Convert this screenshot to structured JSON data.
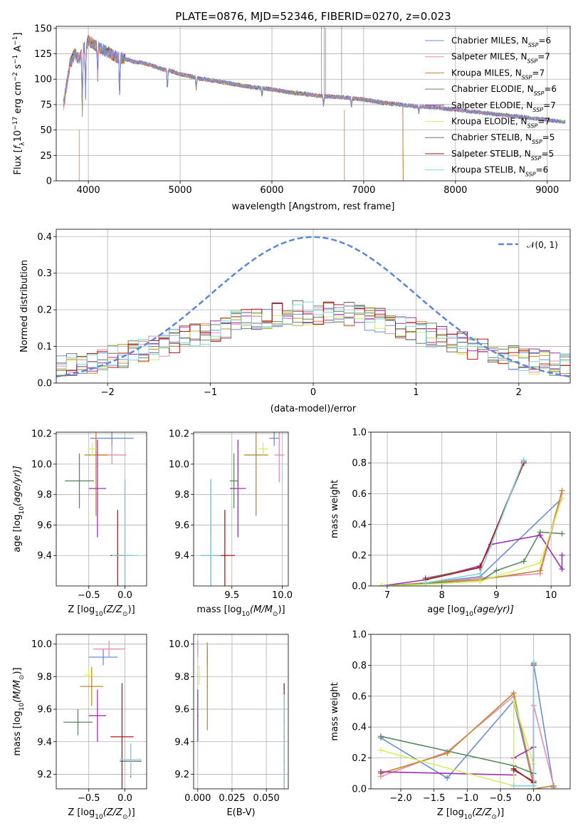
{
  "chart_data": [
    {
      "id": "spectrum",
      "type": "line",
      "title": "PLATE=0876, MJD=52346, FIBERID=0270, z=0.023",
      "xlabel": "wavelength [Angstrom, rest frame]",
      "ylabel": "Flux [f_λ 10^-17 erg cm^-2 s^-1 A^-1]",
      "ylabel_parts": {
        "a": "Flux [",
        "b": "f",
        "c": "λ",
        "d": "10",
        "e": "−17",
        "f": " erg cm",
        "g": "−2",
        "h": " s",
        "i": "−1",
        "j": " A",
        "k": "−1",
        "l": "]"
      },
      "xlim": [
        3650,
        9250
      ],
      "ylim": [
        0,
        152
      ],
      "xticks": [
        4000,
        5000,
        6000,
        7000,
        8000,
        9000
      ],
      "yticks": [
        0,
        25,
        50,
        75,
        100,
        125,
        150
      ],
      "legend_position": "upper right",
      "series": [
        {
          "name": "Chabrier MILES",
          "nssp": "6",
          "color": "#6a8fd6"
        },
        {
          "name": "Salpeter MILES",
          "nssp": "7",
          "color": "#e88cb4"
        },
        {
          "name": "Kroupa MILES",
          "nssp": "7",
          "color": "#c08a2a"
        },
        {
          "name": "Chabrier ELODIE",
          "nssp": "6",
          "color": "#5a8a5a"
        },
        {
          "name": "Salpeter ELODIE",
          "nssp": "7",
          "color": "#9b30b0"
        },
        {
          "name": "Kroupa ELODIE",
          "nssp": "7",
          "color": "#d8ee60"
        },
        {
          "name": "Chabrier STELIB",
          "nssp": "5",
          "color": "#707070"
        },
        {
          "name": "Salpeter STELIB",
          "nssp": "5",
          "color": "#b01818"
        },
        {
          "name": "Kroupa STELIB",
          "nssp": "6",
          "color": "#7fd4e0"
        }
      ],
      "continuum": {
        "x": [
          3730,
          3800,
          3850,
          3900,
          3950,
          4000,
          4100,
          4200,
          4300,
          4400,
          4500,
          4600,
          4700,
          4800,
          4900,
          5000,
          5200,
          5400,
          5600,
          5800,
          6000,
          6200,
          6400,
          6600,
          6800,
          7000,
          7200,
          7400,
          7600,
          7800,
          8000,
          8200,
          8400,
          8600,
          8800,
          9000,
          9200
        ],
        "y": [
          75,
          115,
          125,
          120,
          130,
          138,
          132,
          127,
          122,
          120,
          117,
          116,
          113,
          110,
          108,
          105,
          101,
          98,
          95,
          92,
          90,
          87,
          85,
          83,
          82,
          80,
          77,
          75,
          73,
          72,
          70,
          68,
          66,
          64,
          62,
          60,
          58
        ]
      }
    },
    {
      "id": "residuals",
      "type": "line",
      "xlabel": "(data-model)/error",
      "ylabel": "Normed distribution",
      "xlim": [
        -2.5,
        2.5
      ],
      "ylim": [
        0,
        0.42
      ],
      "xticks": [
        -2,
        -1,
        0,
        1,
        2
      ],
      "yticks": [
        0.0,
        0.1,
        0.2,
        0.3,
        0.4
      ],
      "legend_position": "upper right",
      "gaussian_label": "𝒩(0, 1)",
      "gaussian_color": "#5b88d6"
    },
    {
      "id": "age_vs_Z",
      "type": "scatter",
      "xlabel_parts": {
        "a": "Z [log",
        "b": "10",
        "c": "(Z/Z",
        "d": "⊙",
        "e": ")]"
      },
      "ylabel_parts": {
        "a": "age  [log",
        "b": "10",
        "c": "(age/yr)]"
      },
      "xlim": [
        -0.95,
        0.3
      ],
      "ylim": [
        9.2,
        10.21
      ],
      "xticks": [
        -0.5,
        0.0
      ],
      "yticks": [
        9.4,
        9.6,
        9.8,
        10.0,
        10.2
      ],
      "points": [
        {
          "s": 0,
          "x": -0.18,
          "y": 10.17,
          "ex": 0.3,
          "ey": 0.05
        },
        {
          "s": 1,
          "x": -0.18,
          "y": 10.06,
          "ex": 0.2,
          "ey": 0.06
        },
        {
          "s": 2,
          "x": -0.4,
          "y": 10.06,
          "ex": 0.16,
          "ey": 0.4
        },
        {
          "s": 3,
          "x": -0.63,
          "y": 9.89,
          "ex": 0.2,
          "ey": 0.18
        },
        {
          "s": 4,
          "x": -0.38,
          "y": 9.84,
          "ex": 0.12,
          "ey": 0.32
        },
        {
          "s": 5,
          "x": -0.45,
          "y": 10.1,
          "ex": 0.05,
          "ey": 0.04
        },
        {
          "s": 6,
          "x": 0.0,
          "y": 9.4,
          "ex": 0.12,
          "ey": 0.5
        },
        {
          "s": 7,
          "x": -0.1,
          "y": 9.4,
          "ex": 0.1,
          "ey": 0.3
        },
        {
          "s": 8,
          "x": 0.0,
          "y": 9.4,
          "ex": 0.18,
          "ey": 0.5
        }
      ]
    },
    {
      "id": "age_vs_mass",
      "type": "scatter",
      "xlabel_parts": {
        "a": "mass [log",
        "b": "10",
        "c": "(M/M",
        "d": "⊙",
        "e": ")]"
      },
      "xlim": [
        9.12,
        10.06
      ],
      "ylim": [
        9.2,
        10.21
      ],
      "xticks": [
        9.5,
        10.0
      ],
      "yticks": [
        9.4,
        9.6,
        9.8,
        10.0,
        10.2
      ],
      "points": [
        {
          "s": 0,
          "x": 9.92,
          "y": 10.17,
          "ex": 0.05,
          "ey": 0.05
        },
        {
          "s": 1,
          "x": 9.97,
          "y": 10.06,
          "ex": 0.05,
          "ey": 0.18
        },
        {
          "s": 2,
          "x": 9.74,
          "y": 10.06,
          "ex": 0.12,
          "ey": 0.4
        },
        {
          "s": 3,
          "x": 9.52,
          "y": 9.89,
          "ex": 0.04,
          "ey": 0.18
        },
        {
          "s": 4,
          "x": 9.56,
          "y": 9.84,
          "ex": 0.08,
          "ey": 0.32
        },
        {
          "s": 5,
          "x": 9.81,
          "y": 10.1,
          "ex": 0.05,
          "ey": 0.04
        },
        {
          "s": 6,
          "x": 9.29,
          "y": 9.4,
          "ex": 0.1,
          "ey": 0.5
        },
        {
          "s": 7,
          "x": 9.43,
          "y": 9.4,
          "ex": 0.1,
          "ey": 0.3
        },
        {
          "s": 8,
          "x": 9.29,
          "y": 9.4,
          "ex": 0.1,
          "ey": 0.5
        }
      ]
    },
    {
      "id": "mass_weight_vs_age",
      "type": "line",
      "xlabel_parts": {
        "a": "age  [log",
        "b": "10",
        "c": "(age/yr)]"
      },
      "ylabel": "mass weight",
      "xlim": [
        6.7,
        10.35
      ],
      "ylim": [
        0,
        1
      ],
      "xticks": [
        7,
        8,
        9,
        10
      ],
      "yticks": [
        0.0,
        0.2,
        0.4,
        0.6,
        0.8,
        1.0
      ],
      "series": [
        {
          "s": 0,
          "x": [
            7.7,
            8.7,
            10.2
          ],
          "y": [
            0.02,
            0.06,
            0.57
          ]
        },
        {
          "s": 1,
          "x": [
            7.7,
            8.7,
            9.8,
            10.2
          ],
          "y": [
            0.02,
            0.05,
            0.08,
            0.6
          ]
        },
        {
          "s": 2,
          "x": [
            6.9,
            7.7,
            8.7,
            9.8,
            10.2
          ],
          "y": [
            0.0,
            0.02,
            0.04,
            0.1,
            0.62
          ]
        },
        {
          "s": 3,
          "x": [
            6.9,
            8.0,
            8.7,
            9.0,
            9.5,
            9.8,
            10.2
          ],
          "y": [
            0.0,
            0.02,
            0.03,
            0.1,
            0.16,
            0.35,
            0.34
          ]
        },
        {
          "s": 4,
          "x": [
            6.9,
            7.7,
            8.7,
            8.9,
            9.8,
            10.2,
            10.2
          ],
          "y": [
            0.0,
            0.04,
            0.13,
            0.27,
            0.33,
            0.11,
            0.2
          ]
        },
        {
          "s": 5,
          "x": [
            6.9,
            7.7,
            8.7,
            9.8,
            10.2
          ],
          "y": [
            0.0,
            0.01,
            0.03,
            0.15,
            0.57
          ]
        },
        {
          "s": 6,
          "x": [
            7.7,
            8.7,
            9.5
          ],
          "y": [
            0.05,
            0.12,
            0.81
          ]
        },
        {
          "s": 7,
          "x": [
            7.7,
            8.7,
            9.5
          ],
          "y": [
            0.04,
            0.12,
            0.8
          ]
        },
        {
          "s": 8,
          "x": [
            7.7,
            8.7,
            9.5
          ],
          "y": [
            0.02,
            0.08,
            0.82
          ]
        }
      ]
    },
    {
      "id": "mass_vs_Z",
      "type": "scatter",
      "xlabel_parts": {
        "a": "Z [log",
        "b": "10",
        "c": "(Z/Z",
        "d": "⊙",
        "e": ")]"
      },
      "ylabel_parts": {
        "a": "mass [log",
        "b": "10",
        "c": "(M/M",
        "d": "⊙",
        "e": ")]"
      },
      "xlim": [
        -0.95,
        0.3
      ],
      "ylim": [
        9.11,
        10.06
      ],
      "xticks": [
        -0.5,
        0.0
      ],
      "yticks": [
        9.2,
        9.4,
        9.6,
        9.8,
        10.0
      ],
      "points": [
        {
          "s": 0,
          "x": -0.3,
          "y": 9.92,
          "ex": 0.2,
          "ey": 0.05
        },
        {
          "s": 1,
          "x": -0.22,
          "y": 9.97,
          "ex": 0.22,
          "ey": 0.05
        },
        {
          "s": 2,
          "x": -0.46,
          "y": 9.74,
          "ex": 0.16,
          "ey": 0.12
        },
        {
          "s": 3,
          "x": -0.65,
          "y": 9.52,
          "ex": 0.2,
          "ey": 0.08
        },
        {
          "s": 4,
          "x": -0.38,
          "y": 9.56,
          "ex": 0.12,
          "ey": 0.16
        },
        {
          "s": 5,
          "x": -0.5,
          "y": 9.81,
          "ex": 0.07,
          "ey": 0.04
        },
        {
          "s": 6,
          "x": 0.08,
          "y": 9.28,
          "ex": 0.15,
          "ey": 0.1
        },
        {
          "s": 7,
          "x": -0.04,
          "y": 9.43,
          "ex": 0.16,
          "ey": 0.33
        },
        {
          "s": 8,
          "x": 0.08,
          "y": 9.29,
          "ex": 0.15,
          "ey": 0.1
        }
      ]
    },
    {
      "id": "mass_vs_EBV",
      "type": "scatter",
      "xlabel": "E(B-V)",
      "xlim": [
        -0.003,
        0.066
      ],
      "ylim": [
        9.11,
        10.06
      ],
      "xticks": [
        0.0,
        0.025,
        0.05
      ],
      "xticklabels": [
        "0.000",
        "0.025",
        "0.050"
      ],
      "yticks": [
        9.2,
        9.4,
        9.6,
        9.8,
        10.0
      ],
      "points": [
        {
          "s": 0,
          "x": 0.007,
          "y": 9.92,
          "ex": 0.0,
          "ey": 0.05
        },
        {
          "s": 1,
          "x": 0.0,
          "y": 9.97,
          "ex": 0.0,
          "ey": 0.05
        },
        {
          "s": 2,
          "x": 0.007,
          "y": 9.74,
          "ex": 0.0,
          "ey": 0.27
        },
        {
          "s": 3,
          "x": 0.063,
          "y": 9.52,
          "ex": 0.0,
          "ey": 0.08
        },
        {
          "s": 4,
          "x": 0.0,
          "y": 9.56,
          "ex": 0.0,
          "ey": 0.16
        },
        {
          "s": 5,
          "x": 0.001,
          "y": 9.81,
          "ex": 0.0,
          "ey": 0.06
        },
        {
          "s": 6,
          "x": 0.063,
          "y": 9.28,
          "ex": 0.0,
          "ey": 0.13
        },
        {
          "s": 7,
          "x": 0.063,
          "y": 9.43,
          "ex": 0.0,
          "ey": 0.33
        },
        {
          "s": 8,
          "x": 0.063,
          "y": 9.29,
          "ex": 0.0,
          "ey": 0.4
        }
      ]
    },
    {
      "id": "mass_weight_vs_Z",
      "type": "line",
      "xlabel_parts": {
        "a": "Z [log",
        "b": "10",
        "c": "(Z/Z",
        "d": "⊙",
        "e": ")]"
      },
      "ylabel": "mass weight",
      "xlim": [
        -2.45,
        0.55
      ],
      "ylim": [
        0,
        1
      ],
      "xticks": [
        -2.0,
        -1.5,
        -1.0,
        -0.5,
        0.0
      ],
      "yticks": [
        0.0,
        0.2,
        0.4,
        0.6,
        0.8,
        1.0
      ],
      "series": [
        {
          "s": 0,
          "x": [
            -2.3,
            -1.3,
            -0.3,
            0.0,
            0.0,
            0.3
          ],
          "y": [
            0.33,
            0.07,
            0.57,
            0.02,
            0.81,
            0.01
          ]
        },
        {
          "s": 1,
          "x": [
            -2.3,
            -1.3,
            -0.3,
            0.0,
            0.0,
            0.3
          ],
          "y": [
            0.08,
            0.24,
            0.6,
            0.05,
            0.54,
            0.02
          ]
        },
        {
          "s": 2,
          "x": [
            -2.3,
            -1.3,
            -0.3,
            0.0,
            0.0,
            0.3
          ],
          "y": [
            0.1,
            0.23,
            0.62,
            0.02,
            0.0,
            0.02
          ]
        },
        {
          "s": 3,
          "x": [
            -2.3,
            -0.3,
            0.0,
            0.0
          ],
          "y": [
            0.34,
            0.15,
            0.1,
            0.0
          ]
        },
        {
          "s": 4,
          "x": [
            -2.3,
            -0.3,
            -0.3,
            0.0,
            0.0
          ],
          "y": [
            0.11,
            0.09,
            0.2,
            0.27,
            0.0
          ]
        },
        {
          "s": 5,
          "x": [
            -2.3,
            -0.3,
            -0.3,
            0.0,
            0.0
          ],
          "y": [
            0.25,
            0.02,
            0.57,
            0.16,
            0.0
          ]
        },
        {
          "s": 6,
          "x": [
            -0.3,
            0.0,
            0.0
          ],
          "y": [
            0.12,
            0.05,
            0.81
          ]
        },
        {
          "s": 7,
          "x": [
            -0.3,
            0.0,
            0.0
          ],
          "y": [
            0.13,
            0.04,
            0.8
          ]
        },
        {
          "s": 8,
          "x": [
            -0.3,
            0.0,
            0.0
          ],
          "y": [
            0.02,
            0.02,
            0.82
          ]
        }
      ]
    }
  ]
}
